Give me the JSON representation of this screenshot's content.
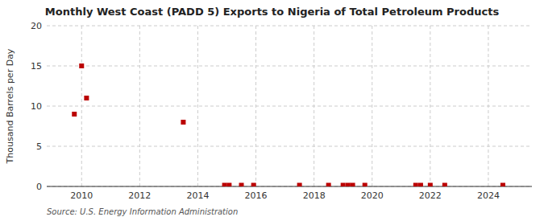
{
  "chart_data": {
    "type": "scatter",
    "title": "Monthly West Coast (PADD 5) Exports to Nigeria of Total Petroleum Products",
    "y_label": "Thousand Barrels per Day",
    "source": "Source: U.S. Energy Information Administration",
    "color": "#bb0000",
    "marker": "square",
    "grid": true,
    "xlim": [
      2008.8,
      2025.5
    ],
    "ylim": [
      0,
      20
    ],
    "xticks": [
      2010,
      2012,
      2014,
      2016,
      2018,
      2020,
      2022,
      2024
    ],
    "yticks": [
      0,
      5,
      10,
      15,
      20
    ],
    "x": [
      2009.75,
      2010.0,
      2010.17,
      2013.5,
      2014.92,
      2015.08,
      2015.5,
      2015.92,
      2017.5,
      2018.5,
      2019.0,
      2019.17,
      2019.33,
      2019.75,
      2021.5,
      2021.67,
      2022.0,
      2022.5,
      2024.5
    ],
    "values": [
      9.0,
      15.0,
      11.0,
      8.0,
      0.15,
      0.15,
      0.15,
      0.15,
      0.15,
      0.15,
      0.15,
      0.15,
      0.15,
      0.15,
      0.15,
      0.15,
      0.15,
      0.15,
      0.15
    ]
  }
}
